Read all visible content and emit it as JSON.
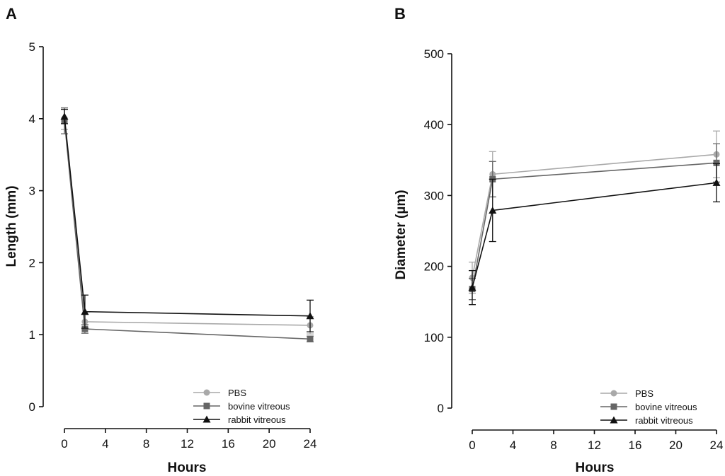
{
  "chart_data": [
    {
      "panel_label": "A",
      "type": "line",
      "title": "",
      "xlabel": "Hours",
      "ylabel": "Length (mm)",
      "xlim": [
        0,
        24
      ],
      "ylim": [
        0,
        5
      ],
      "xticks": [
        "0",
        "4",
        "8",
        "12",
        "16",
        "20",
        "24"
      ],
      "yticks": [
        "0",
        "1",
        "2",
        "3",
        "4",
        "5"
      ],
      "legend_position": "bottom-right",
      "x": [
        0,
        2,
        24
      ],
      "series": [
        {
          "name": "PBS",
          "marker": "circle",
          "color": "#a9a9a9",
          "values": [
            4.0,
            1.18,
            1.13
          ],
          "errors": [
            0.15,
            0.1,
            0.12
          ]
        },
        {
          "name": "bovine vitreous",
          "marker": "square",
          "color": "#666666",
          "values": [
            3.97,
            1.08,
            0.94
          ],
          "errors": [
            0.18,
            0.06,
            0.04
          ]
        },
        {
          "name": "rabbit vitreous",
          "marker": "triangle",
          "color": "#111111",
          "values": [
            4.03,
            1.32,
            1.26
          ],
          "errors": [
            0.1,
            0.23,
            0.22
          ]
        }
      ]
    },
    {
      "panel_label": "B",
      "type": "line",
      "title": "",
      "xlabel": "Hours",
      "ylabel": "Diameter (µm)",
      "xlim": [
        0,
        24
      ],
      "ylim": [
        0,
        500
      ],
      "xticks": [
        "0",
        "4",
        "8",
        "12",
        "16",
        "20",
        "24"
      ],
      "yticks": [
        "0",
        "100",
        "200",
        "300",
        "400",
        "500"
      ],
      "legend_position": "bottom-right",
      "x": [
        0,
        2,
        24
      ],
      "series": [
        {
          "name": "PBS",
          "marker": "circle",
          "color": "#a9a9a9",
          "values": [
            184,
            330,
            358
          ],
          "errors": [
            22,
            32,
            33
          ]
        },
        {
          "name": "bovine vitreous",
          "marker": "square",
          "color": "#666666",
          "values": [
            168,
            323,
            346
          ],
          "errors": [
            15,
            25,
            27
          ]
        },
        {
          "name": "rabbit vitreous",
          "marker": "triangle",
          "color": "#111111",
          "values": [
            170,
            279,
            318
          ],
          "errors": [
            24,
            44,
            27
          ]
        }
      ]
    }
  ]
}
